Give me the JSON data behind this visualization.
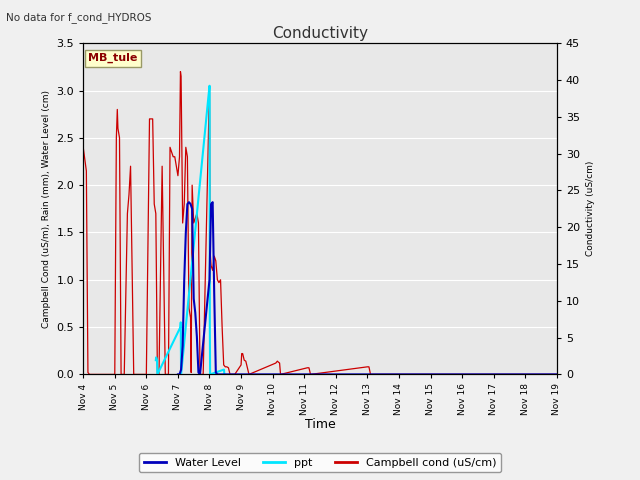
{
  "title": "Conductivity",
  "no_data_text": "No data for f_cond_HYDROS",
  "site_label": "MB_tule",
  "ylabel_left": "Campbell Cond (uS/m), Rain (mm), Water Level (cm)",
  "ylabel_right": "Conductivity (uS/cm)",
  "xlabel": "Time",
  "ylim_left": [
    0,
    3.5
  ],
  "ylim_right": [
    0,
    45
  ],
  "fig_facecolor": "#f0f0f0",
  "plot_facecolor": "#e8e8e8",
  "x_tick_labels": [
    "Nov 4",
    "Nov 5",
    "Nov 6",
    "Nov 7",
    "Nov 8",
    "Nov 9",
    "Nov 10",
    "Nov 11",
    "Nov 12",
    "Nov 13",
    "Nov 14",
    "Nov 15",
    "Nov 16",
    "Nov 17",
    "Nov 18",
    "Nov 19"
  ],
  "campbell_x": [
    4.0,
    4.08,
    4.1,
    4.15,
    4.2,
    4.25,
    4.3,
    5.0,
    5.05,
    5.08,
    5.1,
    5.15,
    5.2,
    5.3,
    5.4,
    5.45,
    5.5,
    5.6,
    5.7,
    5.8,
    5.9,
    6.0,
    6.1,
    6.2,
    6.25,
    6.3,
    6.35,
    6.4,
    6.5,
    6.6,
    6.7,
    6.75,
    6.8,
    6.85,
    6.9,
    7.0,
    7.05,
    7.08,
    7.1,
    7.15,
    7.2,
    7.25,
    7.3,
    7.35,
    7.4,
    7.42,
    7.45,
    7.5,
    7.55,
    7.6,
    7.65,
    7.7,
    7.75,
    7.8,
    8.0,
    8.02,
    8.05,
    8.1,
    8.15,
    8.2,
    8.25,
    8.3,
    8.35,
    8.4,
    8.45,
    8.5,
    8.55,
    8.6,
    8.65,
    8.7,
    8.75,
    8.8,
    9.0,
    9.02,
    9.05,
    9.1,
    9.15,
    9.2,
    9.25,
    10.1,
    10.15,
    10.18,
    10.22,
    10.25,
    11.1,
    11.15,
    11.2,
    13.0,
    13.05,
    13.1,
    19.0
  ],
  "campbell_y": [
    2.4,
    2.2,
    2.15,
    0.02,
    0.0,
    0.0,
    0.0,
    0.0,
    2.5,
    2.8,
    2.6,
    2.5,
    0.0,
    0.0,
    1.7,
    1.9,
    2.2,
    0.0,
    0.0,
    0.0,
    0.0,
    0.0,
    2.7,
    2.7,
    1.8,
    1.7,
    0.0,
    0.0,
    2.2,
    0.0,
    0.0,
    2.4,
    2.35,
    2.3,
    2.3,
    2.1,
    2.3,
    3.2,
    3.15,
    1.6,
    1.8,
    2.4,
    2.3,
    0.7,
    0.6,
    0.02,
    2.0,
    1.6,
    1.65,
    1.7,
    1.6,
    0.0,
    0.0,
    0.0,
    3.05,
    1.3,
    1.15,
    1.1,
    1.25,
    1.2,
    1.0,
    0.97,
    1.0,
    0.5,
    0.1,
    0.08,
    0.08,
    0.07,
    0.0,
    0.0,
    0.0,
    0.0,
    0.1,
    0.22,
    0.22,
    0.15,
    0.14,
    0.07,
    0.0,
    0.12,
    0.14,
    0.13,
    0.12,
    0.0,
    0.07,
    0.07,
    0.0,
    0.08,
    0.08,
    0.0,
    0.0
  ],
  "ppt_x": [
    6.3,
    6.31,
    6.34,
    6.35,
    7.08,
    7.09,
    7.1,
    8.0,
    8.005,
    8.01,
    8.02,
    8.45,
    8.46,
    8.47
  ],
  "ppt_y": [
    0.15,
    0.18,
    0.15,
    0.0,
    0.5,
    0.55,
    0.0,
    3.05,
    3.05,
    0.5,
    0.0,
    0.05,
    0.05,
    0.0
  ],
  "wl_x": [
    7.0,
    7.05,
    7.1,
    7.15,
    7.2,
    7.25,
    7.3,
    7.35,
    7.4,
    7.45,
    7.5,
    7.55,
    7.6,
    7.65,
    7.7,
    8.0,
    8.05,
    8.1,
    8.15,
    8.2,
    8.25,
    19.0
  ],
  "wl_y": [
    0.0,
    0.0,
    0.05,
    0.3,
    1.0,
    1.5,
    1.8,
    1.82,
    1.8,
    1.75,
    0.8,
    0.65,
    0.4,
    0.02,
    0.0,
    1.0,
    1.8,
    1.82,
    0.85,
    0.02,
    0.0,
    0.0
  ]
}
